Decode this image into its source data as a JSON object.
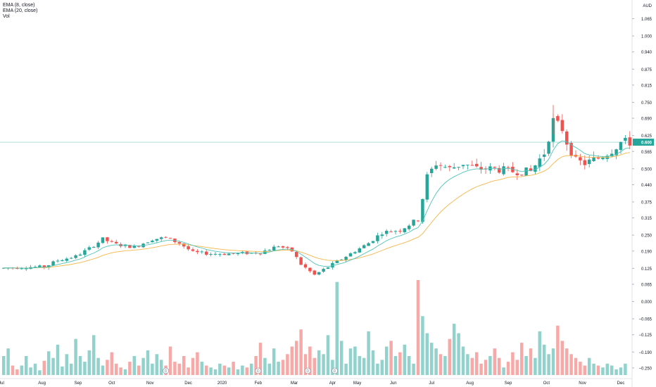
{
  "legend": {
    "ema_fast": "EMA (8, close)",
    "ema_slow": "EMA (20, close)",
    "volume": "Vol"
  },
  "colors": {
    "up": "#26a69a",
    "down": "#ef5350",
    "ema_fast": "#4fc3b7",
    "ema_slow": "#f7b64a",
    "price_line": "#26a69a",
    "price_label_bg": "#26a69a",
    "axis_text": "#131722"
  },
  "chart_data": {
    "type": "candlestick",
    "currency_label": "AUD",
    "current_price_label": "0.600",
    "current_price": 0.6,
    "y_axis": {
      "ticks": [
        1.065,
        1.0,
        0.94,
        0.875,
        0.815,
        0.75,
        0.69,
        0.625,
        0.565,
        0.5,
        0.44,
        0.375,
        0.315,
        0.25,
        0.19,
        0.125,
        0.065,
        0.0,
        -0.065,
        -0.125,
        -0.19,
        -0.25
      ],
      "tick_labels": [
        "1.065",
        "1.000",
        "0.940",
        "0.875",
        "0.815",
        "0.750",
        "0.690",
        "0.625",
        "0.565",
        "0.500",
        "0.440",
        "0.375",
        "0.315",
        "0.250",
        "0.190",
        "0.125",
        "0.065",
        "0.000",
        "−0.065",
        "−0.125",
        "−0.190",
        "−0.250"
      ],
      "range": [
        -0.29,
        1.13
      ]
    },
    "x_axis": {
      "labels": [
        "Jul",
        "Aug",
        "Sep",
        "Oct",
        "Nov",
        "Dec",
        "2020",
        "Feb",
        "Mar",
        "Apr",
        "May",
        "Jun",
        "Jul",
        "Aug",
        "Sep",
        "Oct",
        "Nov",
        "Dec"
      ],
      "label_weeks": [
        0,
        9,
        17,
        24.5,
        33,
        41.5,
        49,
        57,
        65,
        73.5,
        79,
        87,
        95.5,
        104,
        112.5,
        121,
        129,
        137.5
      ]
    },
    "price_anchors": [
      [
        0,
        0.125
      ],
      [
        6,
        0.13
      ],
      [
        10,
        0.13
      ],
      [
        13,
        0.155
      ],
      [
        17,
        0.17
      ],
      [
        20,
        0.2
      ],
      [
        23,
        0.235
      ],
      [
        26,
        0.215
      ],
      [
        30,
        0.205
      ],
      [
        34,
        0.235
      ],
      [
        37,
        0.24
      ],
      [
        40,
        0.22
      ],
      [
        43,
        0.185
      ],
      [
        47,
        0.18
      ],
      [
        52,
        0.18
      ],
      [
        58,
        0.185
      ],
      [
        62,
        0.21
      ],
      [
        65,
        0.19
      ],
      [
        67,
        0.14
      ],
      [
        70,
        0.1
      ],
      [
        72,
        0.12
      ],
      [
        75,
        0.15
      ],
      [
        78,
        0.18
      ],
      [
        82,
        0.22
      ],
      [
        85,
        0.26
      ],
      [
        89,
        0.27
      ],
      [
        93,
        0.31
      ],
      [
        95,
        0.47
      ],
      [
        97,
        0.52
      ],
      [
        100,
        0.5
      ],
      [
        103,
        0.52
      ],
      [
        106,
        0.5
      ],
      [
        110,
        0.5
      ],
      [
        114,
        0.49
      ],
      [
        118,
        0.49
      ],
      [
        121,
        0.56
      ],
      [
        123,
        0.68
      ],
      [
        125,
        0.65
      ],
      [
        126,
        0.6
      ],
      [
        128,
        0.53
      ],
      [
        130,
        0.52
      ],
      [
        133,
        0.54
      ],
      [
        136,
        0.57
      ],
      [
        138,
        0.6
      ]
    ],
    "volume_levels": [
      0.2,
      0.28,
      0.1,
      0.06,
      0.1,
      0.2,
      0.08,
      0.12,
      0.05,
      0.15,
      0.25,
      0.18,
      0.32,
      0.09,
      0.22,
      0.12,
      0.38,
      0.2,
      0.14,
      0.26,
      0.42,
      0.18,
      0.1,
      0.16,
      0.24,
      0.12,
      0.08,
      0.06,
      0.14,
      0.2,
      0.1,
      0.18,
      0.26,
      0.12,
      0.22,
      0.16,
      0.1,
      0.3,
      0.14,
      0.12,
      0.2,
      0.08,
      0.18,
      0.24,
      0.14,
      0.1,
      0.08,
      0.06,
      0.12,
      0.1,
      0.08,
      0.14,
      0.06,
      0.1,
      0.08,
      0.12,
      0.2,
      0.34,
      0.18,
      0.12,
      0.28,
      0.14,
      0.16,
      0.22,
      0.3,
      0.36,
      0.48,
      0.22,
      0.3,
      0.18,
      0.26,
      0.22,
      0.42,
      0.16,
      0.98,
      0.36,
      0.12,
      0.28,
      0.3,
      0.2,
      0.18,
      0.46,
      0.26,
      0.12,
      0.16,
      0.3,
      0.36,
      0.2,
      0.24,
      0.32,
      0.2,
      0.12,
      1.0,
      0.62,
      0.44,
      0.34,
      0.28,
      0.22,
      0.2,
      0.38,
      0.54,
      0.44,
      0.3,
      0.22,
      0.18,
      0.24,
      0.12,
      0.16,
      0.2,
      0.28,
      0.18,
      0.08,
      0.14,
      0.24,
      0.16,
      0.34,
      0.2,
      0.28,
      0.18,
      0.46,
      0.32,
      0.22,
      0.28,
      0.52,
      0.36,
      0.28,
      0.22,
      0.18,
      0.14,
      0.1,
      0.18,
      0.12,
      0.1,
      0.08,
      0.12,
      0.1,
      0.06,
      0.08,
      0.12
    ]
  }
}
